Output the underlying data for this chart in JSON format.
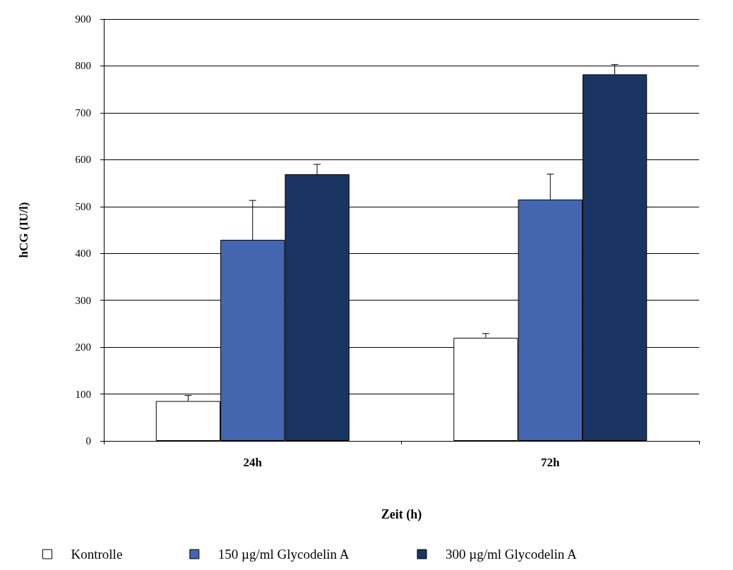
{
  "chart_data": {
    "type": "bar",
    "xlabel": "Zeit (h)",
    "ylabel": "hCG (IU/l)",
    "categories": [
      "24h",
      "72h"
    ],
    "series": [
      {
        "name": "Kontrolle",
        "color": "#ffffff",
        "values": [
          85,
          220
        ],
        "errors": [
          [
            85,
            97
          ],
          [
            220,
            229
          ]
        ]
      },
      {
        "name": "150 µg/ml Glycodelin A",
        "color": "#4466b0",
        "values": [
          429,
          515
        ],
        "errors": [
          [
            429,
            513
          ],
          [
            515,
            569
          ]
        ]
      },
      {
        "name": "300 µg/ml Glycodelin A",
        "color": "#1b3563",
        "values": [
          569,
          782
        ],
        "errors": [
          [
            569,
            590
          ],
          [
            782,
            803
          ]
        ]
      }
    ],
    "ylim": [
      0,
      900
    ],
    "yticks": [
      0,
      100,
      200,
      300,
      400,
      500,
      600,
      700,
      800,
      900
    ],
    "grid": "y",
    "legend": "bottom"
  }
}
